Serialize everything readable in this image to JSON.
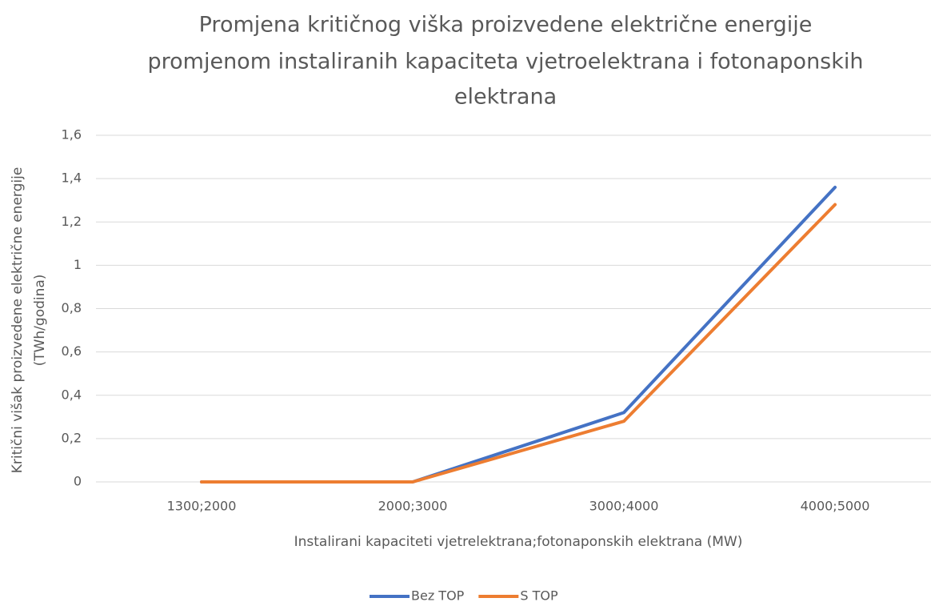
{
  "chart_data": {
    "type": "line",
    "title": [
      "Promjena kritičnog viška proizvedene električne energije",
      "promjenom instaliranih kapaciteta vjetroelektrana i fotonaponskih",
      "elektrana"
    ],
    "x_label": "Instalirani kapaciteti vjetrelektrana;fotonaponskih elektrana (MW)",
    "y_label": [
      "Kritični višak proizvedene električne energije",
      "(TWh/godina)"
    ],
    "categories": [
      "1300;2000",
      "2000;3000",
      "3000;4000",
      "4000;5000"
    ],
    "series": [
      {
        "name": "Bez TOP",
        "color": "#4472c4",
        "values": [
          0,
          0,
          0.32,
          1.36
        ]
      },
      {
        "name": "S TOP",
        "color": "#ed7d31",
        "values": [
          0,
          0,
          0.28,
          1.28
        ]
      }
    ],
    "ylim": [
      0,
      1.6
    ],
    "yticks": [
      0,
      {
        "value": 0.2,
        "label": "0,2"
      },
      {
        "value": 0.4,
        "label": "0,4"
      },
      {
        "value": 0.6,
        "label": "0,6"
      },
      {
        "value": 0.8,
        "label": "0,8"
      },
      1,
      {
        "value": 1.2,
        "label": "1,2"
      },
      {
        "value": 1.4,
        "label": "1,4"
      },
      {
        "value": 1.6,
        "label": "1,6"
      }
    ],
    "grid": true,
    "legend": "bottom"
  }
}
